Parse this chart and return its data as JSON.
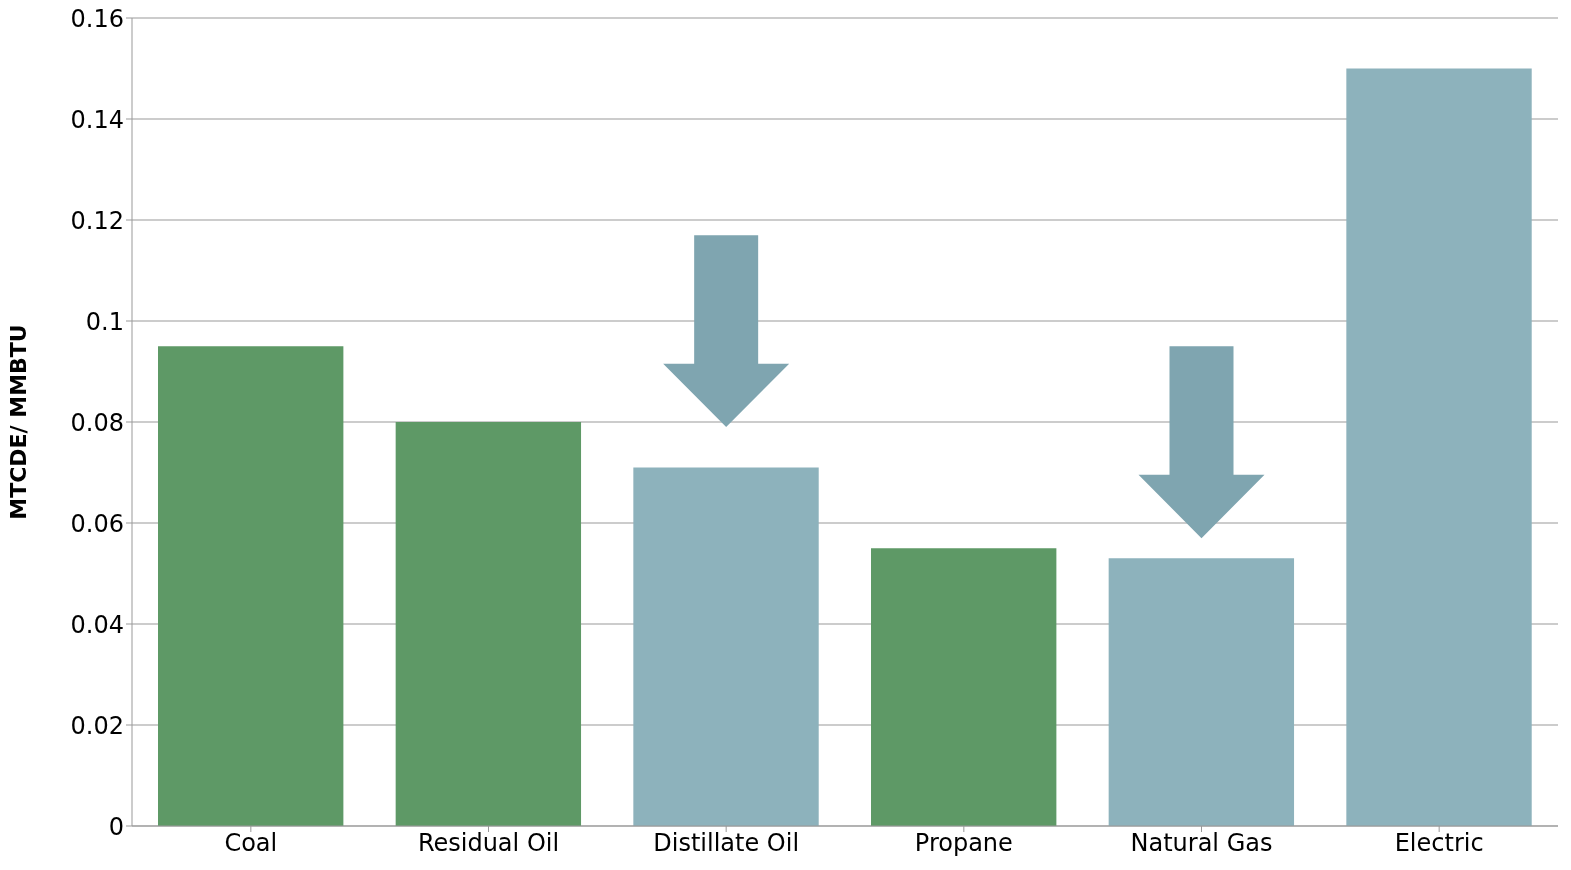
{
  "chart_data": {
    "type": "bar",
    "ylabel": "MTCDE/ MMBTU",
    "categories": [
      "Coal",
      "Residual Oil",
      "Distillate Oil",
      "Propane",
      "Natural Gas",
      "Electric"
    ],
    "values": [
      0.095,
      0.08,
      0.071,
      0.055,
      0.053,
      0.15
    ],
    "colors": [
      "#5e9966",
      "#5e9966",
      "#8db2bc",
      "#5e9966",
      "#8db2bc",
      "#8db2bc"
    ],
    "ylim": [
      0,
      0.16
    ],
    "yticks": [
      0,
      0.02,
      0.04,
      0.06,
      0.08,
      0.1,
      0.12,
      0.14,
      0.16
    ],
    "grid": "y",
    "legend": false
  }
}
